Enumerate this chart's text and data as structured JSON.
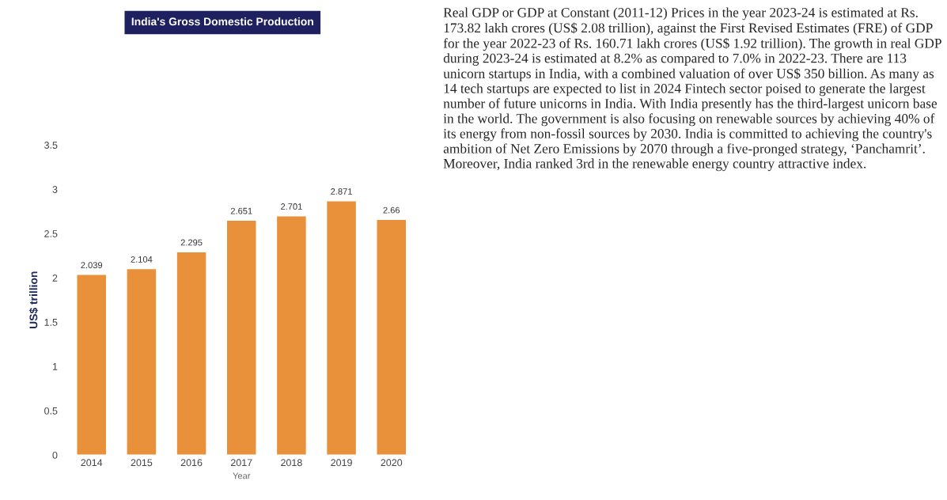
{
  "chart_data": {
    "type": "bar",
    "title": "India's Gross Domestic Production",
    "xlabel": "Year",
    "ylabel": "US$ trillion",
    "categories": [
      "2014",
      "2015",
      "2016",
      "2017",
      "2018",
      "2019",
      "2020"
    ],
    "values": [
      2.039,
      2.104,
      2.295,
      2.651,
      2.701,
      2.871,
      2.66
    ],
    "color": "#e8913a",
    "data_labels": true,
    "grid": false,
    "ylim": [
      0,
      3.5
    ],
    "yticks": [
      0,
      0.5,
      1,
      1.5,
      2,
      2.5,
      3,
      3.5
    ],
    "annotations": [
      "Real GDP or GDP at Constant (2011-12) Prices in the year 2023-24 is estimated at Rs. 173.82 lakh crores (US$ 2.08 trillion), against the First Revised Estimates (FRE) of GDP for the year 2022-23 of Rs. 160.71 lakh crores (US$ 1.92 trillion). The growth in real GDP during 2023-24 is estimated at 8.2% as compared to 7.0% in 2022-23. There are 113 unicorn startups in India, with a combined valuation of over US$ 350 billion. As many as 14 tech startups are expected to list in 2024 Fintech sector poised to generate the largest number of future unicorns in India. With India presently has the third-largest unicorn base in the world. The government is also focusing on renewable sources by achieving 40% of its energy from non-fossil sources by 2030. India is committed to achieving the country's ambition of Net Zero Emissions by 2070 through a five-pronged strategy, ‘Panchamrit’. Moreover, India ranked 3rd in the renewable energy country attractive index."
    ]
  }
}
